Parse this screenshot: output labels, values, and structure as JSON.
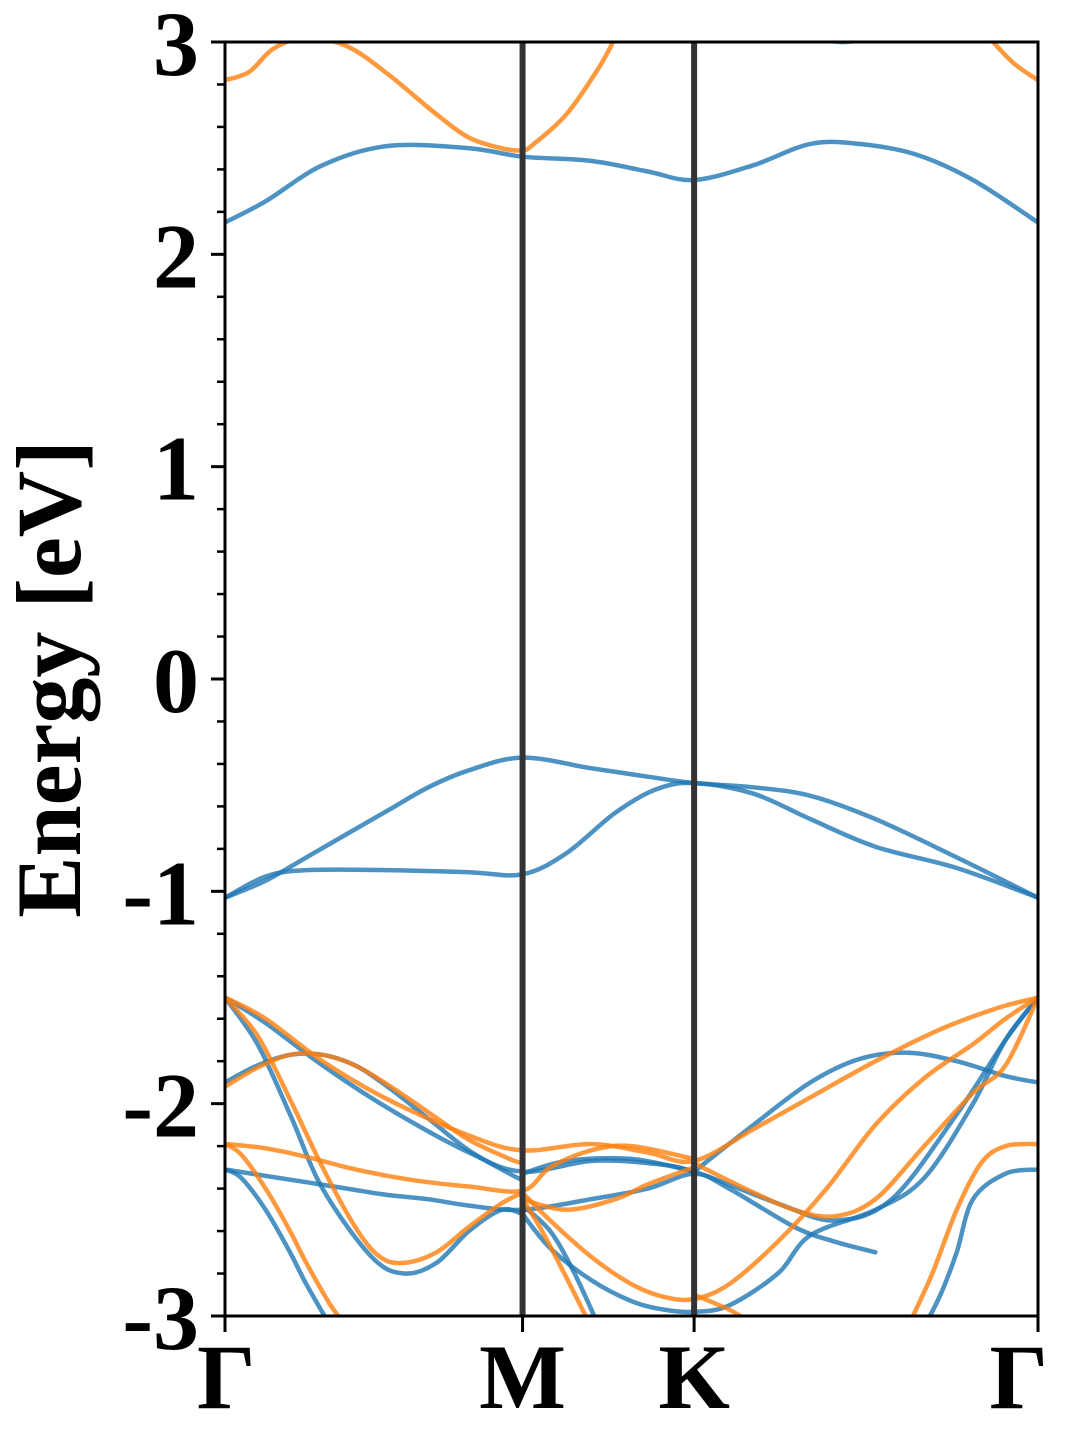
{
  "chart_data": {
    "type": "line",
    "title": "",
    "xlabel": "",
    "ylabel": "Energy [eV]",
    "ylim": [
      -3,
      3
    ],
    "yticks": [
      -3,
      -2,
      -1,
      0,
      1,
      2,
      3
    ],
    "ytick_labels": [
      "-3",
      "-2",
      "-1",
      "0",
      "1",
      "2",
      "3"
    ],
    "x_range": [
      0,
      1
    ],
    "high_symmetry_points": [
      {
        "label": "Γ",
        "x": 0.0
      },
      {
        "label": "M",
        "x": 0.366
      },
      {
        "label": "K",
        "x": 0.577
      },
      {
        "label": "Γ",
        "x": 1.0
      }
    ],
    "grid": false,
    "colors": {
      "spin_up": "#1f77b4",
      "spin_down": "#ff7f0e",
      "kpath_lines": "#333333"
    },
    "series": [
      {
        "spin": "up",
        "x": [
          0,
          0.05,
          0.12,
          0.2,
          0.3,
          0.366,
          0.45,
          0.52,
          0.577,
          0.65,
          0.72,
          0.78,
          0.85,
          0.92,
          1.0
        ],
        "y": [
          2.15,
          2.25,
          2.42,
          2.51,
          2.5,
          2.46,
          2.44,
          2.39,
          2.35,
          2.42,
          2.52,
          2.52,
          2.47,
          2.35,
          2.15
        ]
      },
      {
        "spin": "up",
        "x": [
          0,
          0.05,
          0.1,
          0.15,
          0.2,
          0.25,
          0.3,
          0.366,
          0.45,
          0.52,
          0.577,
          0.65,
          0.72,
          0.8,
          0.9,
          1.0
        ],
        "y": [
          -1.03,
          -0.95,
          -0.84,
          -0.73,
          -0.62,
          -0.51,
          -0.43,
          -0.37,
          -0.42,
          -0.46,
          -0.49,
          -0.51,
          -0.55,
          -0.66,
          -0.84,
          -1.03
        ]
      },
      {
        "spin": "up",
        "x": [
          0,
          0.05,
          0.1,
          0.2,
          0.3,
          0.366,
          0.42,
          0.48,
          0.53,
          0.577,
          0.65,
          0.72,
          0.8,
          0.9,
          1.0
        ],
        "y": [
          -1.03,
          -0.93,
          -0.9,
          -0.9,
          -0.91,
          -0.92,
          -0.82,
          -0.63,
          -0.52,
          -0.49,
          -0.54,
          -0.66,
          -0.79,
          -0.89,
          -1.03
        ]
      },
      {
        "spin": "up",
        "x": [
          0,
          0.05,
          0.12,
          0.2,
          0.3,
          0.366,
          0.45,
          0.52,
          0.577,
          0.68,
          0.75,
          0.82,
          0.9,
          0.96,
          1.0
        ],
        "y": [
          -1.5,
          -1.62,
          -1.82,
          -2.02,
          -2.23,
          -2.32,
          -2.27,
          -2.28,
          -2.32,
          -2.47,
          -2.55,
          -2.45,
          -2.05,
          -1.7,
          -1.5
        ]
      },
      {
        "spin": "up",
        "x": [
          0,
          0.04,
          0.08,
          0.12,
          0.16,
          0.2,
          0.25,
          0.3,
          0.35,
          0.366
        ],
        "y": [
          -1.9,
          -1.82,
          -1.77,
          -1.77,
          -1.82,
          -1.92,
          -2.07,
          -2.22,
          -2.33,
          -2.36
        ]
      },
      {
        "spin": "up",
        "x": [
          0.577,
          0.65,
          0.72,
          0.78,
          0.84,
          0.9,
          0.96,
          1.0
        ],
        "y": [
          -2.32,
          -2.1,
          -1.9,
          -1.79,
          -1.76,
          -1.8,
          -1.87,
          -1.9
        ]
      },
      {
        "spin": "up",
        "x": [
          0,
          0.04,
          0.08,
          0.12,
          0.18,
          0.22,
          0.26,
          0.3,
          0.34,
          0.366
        ],
        "y": [
          -1.5,
          -1.72,
          -2.05,
          -2.4,
          -2.72,
          -2.8,
          -2.75,
          -2.6,
          -2.5,
          -2.52
        ]
      },
      {
        "spin": "up",
        "x": [
          0.366,
          0.4,
          0.45,
          0.5,
          0.54,
          0.577,
          0.62,
          0.68,
          0.72,
          0.8,
          0.86,
          0.92,
          0.96,
          1.0
        ],
        "y": [
          -2.52,
          -2.68,
          -2.83,
          -2.93,
          -2.97,
          -2.98,
          -2.95,
          -2.8,
          -2.62,
          -2.5,
          -2.35,
          -2.0,
          -1.7,
          -1.5
        ]
      },
      {
        "spin": "up",
        "x": [
          0,
          0.05,
          0.1,
          0.15,
          0.2,
          0.25,
          0.3,
          0.366,
          0.45,
          0.52,
          0.577,
          0.62,
          0.7,
          0.75,
          0.8
        ],
        "y": [
          -2.31,
          -2.34,
          -2.37,
          -2.4,
          -2.43,
          -2.45,
          -2.48,
          -2.5,
          -2.45,
          -2.4,
          -2.33,
          -2.4,
          -2.58,
          -2.65,
          -2.7
        ]
      },
      {
        "spin": "up",
        "x": [
          0,
          0.02,
          0.05,
          0.08,
          0.1,
          0.13
        ],
        "y": [
          -2.31,
          -2.35,
          -2.5,
          -2.7,
          -2.85,
          -3.05
        ]
      },
      {
        "spin": "up",
        "x": [
          0.366,
          0.42,
          0.5,
          0.577
        ],
        "y": [
          -2.33,
          -2.27,
          -2.26,
          -2.32
        ]
      },
      {
        "spin": "up",
        "x": [
          0.366,
          0.4,
          0.43,
          0.46
        ],
        "y": [
          -2.48,
          -2.6,
          -2.8,
          -3.05
        ]
      },
      {
        "spin": "up",
        "x": [
          0.86,
          0.88,
          0.9,
          0.92,
          0.96,
          1.0
        ],
        "y": [
          -3.05,
          -2.9,
          -2.7,
          -2.45,
          -2.33,
          -2.31
        ]
      },
      {
        "spin": "up",
        "x": [
          0.72,
          0.76,
          0.8
        ],
        "y": [
          3.02,
          3.0,
          3.02
        ]
      },
      {
        "spin": "down",
        "x": [
          0,
          0.03,
          0.06,
          0.1,
          0.15,
          0.2,
          0.26,
          0.3,
          0.34,
          0.366,
          0.38,
          0.42,
          0.46,
          0.48
        ],
        "y": [
          2.82,
          2.86,
          2.97,
          3.02,
          2.98,
          2.85,
          2.66,
          2.55,
          2.5,
          2.49,
          2.52,
          2.66,
          2.88,
          3.02
        ]
      },
      {
        "spin": "down",
        "x": [
          0.94,
          0.97,
          1.0
        ],
        "y": [
          3.02,
          2.9,
          2.82
        ]
      },
      {
        "spin": "down",
        "x": [
          0,
          0.05,
          0.12,
          0.2,
          0.3,
          0.366,
          0.45,
          0.52,
          0.577,
          0.65,
          0.72,
          0.8,
          0.88,
          0.95,
          1.0
        ],
        "y": [
          -1.5,
          -1.6,
          -1.8,
          -1.98,
          -2.15,
          -2.22,
          -2.19,
          -2.23,
          -2.27,
          -2.12,
          -1.97,
          -1.8,
          -1.65,
          -1.55,
          -1.5
        ]
      },
      {
        "spin": "down",
        "x": [
          0,
          0.04,
          0.08,
          0.12,
          0.16,
          0.2,
          0.25,
          0.3,
          0.35,
          0.366
        ],
        "y": [
          -1.92,
          -1.83,
          -1.77,
          -1.77,
          -1.82,
          -1.91,
          -2.04,
          -2.17,
          -2.26,
          -2.28
        ]
      },
      {
        "spin": "down",
        "x": [
          0.577,
          0.64,
          0.7,
          0.75,
          0.8,
          0.86,
          0.92,
          0.96,
          1.0
        ],
        "y": [
          -2.28,
          -2.4,
          -2.5,
          -2.53,
          -2.45,
          -2.2,
          -1.95,
          -1.82,
          -1.5
        ]
      },
      {
        "spin": "down",
        "x": [
          0,
          0.04,
          0.08,
          0.12,
          0.16,
          0.19,
          0.22,
          0.26,
          0.3,
          0.34,
          0.366
        ],
        "y": [
          -1.5,
          -1.68,
          -1.98,
          -2.3,
          -2.58,
          -2.72,
          -2.75,
          -2.7,
          -2.58,
          -2.47,
          -2.42
        ]
      },
      {
        "spin": "down",
        "x": [
          0.366,
          0.4,
          0.45,
          0.5,
          0.54,
          0.577,
          0.62,
          0.68,
          0.74,
          0.8,
          0.86,
          0.92,
          0.96,
          1.0
        ],
        "y": [
          -2.42,
          -2.55,
          -2.72,
          -2.85,
          -2.91,
          -2.92,
          -2.85,
          -2.65,
          -2.4,
          -2.1,
          -1.88,
          -1.72,
          -1.6,
          -1.5
        ]
      },
      {
        "spin": "down",
        "x": [
          0,
          0.05,
          0.1,
          0.15,
          0.2,
          0.25,
          0.3,
          0.366,
          0.4,
          0.45,
          0.5,
          0.577
        ],
        "y": [
          -2.19,
          -2.21,
          -2.25,
          -2.3,
          -2.34,
          -2.37,
          -2.39,
          -2.41,
          -2.3,
          -2.22,
          -2.2,
          -2.26
        ]
      },
      {
        "spin": "down",
        "x": [
          0.366,
          0.42,
          0.48,
          0.52,
          0.577
        ],
        "y": [
          -2.45,
          -2.5,
          -2.45,
          -2.38,
          -2.3
        ]
      },
      {
        "spin": "down",
        "x": [
          0.577,
          0.62,
          0.66,
          0.7,
          0.74
        ],
        "y": [
          -2.9,
          -2.97,
          -3.05,
          -3.05,
          -3.05
        ]
      },
      {
        "spin": "down",
        "x": [
          0,
          0.02,
          0.05,
          0.08,
          0.1,
          0.13,
          0.15
        ],
        "y": [
          -2.19,
          -2.24,
          -2.4,
          -2.6,
          -2.75,
          -2.95,
          -3.05
        ]
      },
      {
        "spin": "down",
        "x": [
          0.84,
          0.87,
          0.9,
          0.93,
          0.96,
          1.0
        ],
        "y": [
          -3.05,
          -2.8,
          -2.5,
          -2.28,
          -2.2,
          -2.19
        ]
      },
      {
        "spin": "down",
        "x": [
          0.366,
          0.39,
          0.42,
          0.45
        ],
        "y": [
          -2.45,
          -2.6,
          -2.82,
          -3.05
        ]
      }
    ]
  }
}
